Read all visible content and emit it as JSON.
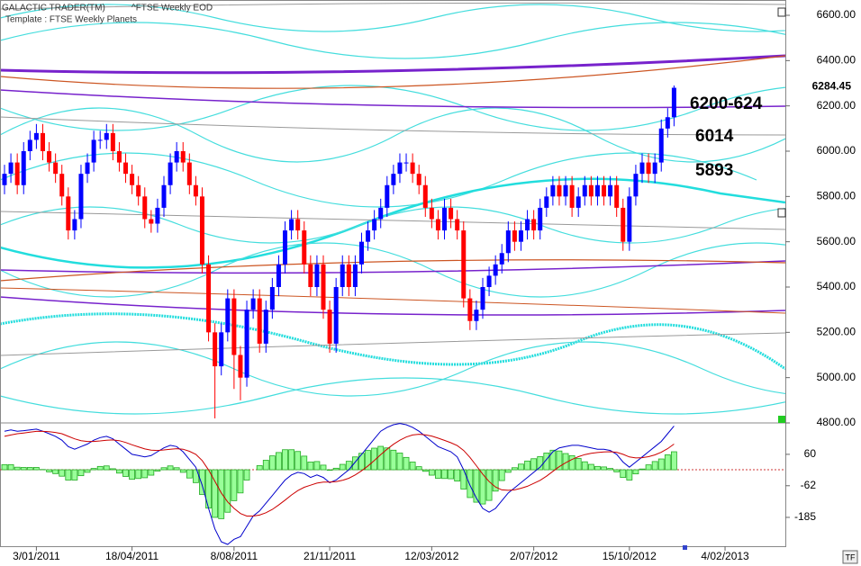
{
  "chart_data": [
    {
      "type": "candlestick",
      "title": "GALACTIC TRADER(TM)",
      "subtitle": "^FTSE Weekly EOD",
      "template": "Template : FTSE Weekly Planets",
      "up_color": "#0000ff",
      "down_color": "#ff0000",
      "open": [
        5850,
        5900,
        5950,
        5850,
        6000,
        6050,
        6080,
        6000,
        5950,
        5900,
        5800,
        5650,
        5700,
        5900,
        5950,
        6050,
        6050,
        6080,
        6000,
        5950,
        5900,
        5850,
        5800,
        5700,
        5680,
        5750,
        5850,
        5950,
        6000,
        5950,
        5850,
        5800,
        5500,
        5200,
        5050,
        5200,
        5350,
        5100,
        5000,
        5300,
        5350,
        5150,
        5300,
        5400,
        5500,
        5650,
        5700,
        5650,
        5500,
        5400,
        5500,
        5300,
        5150,
        5400,
        5500,
        5400,
        5500,
        5600,
        5650,
        5700,
        5750,
        5850,
        5900,
        5950,
        5950,
        5900,
        5850,
        5750,
        5700,
        5650,
        5750,
        5700,
        5650,
        5350,
        5250,
        5300,
        5400,
        5450,
        5500,
        5550,
        5650,
        5600,
        5650,
        5700,
        5650,
        5750,
        5800,
        5850,
        5800,
        5850,
        5750,
        5800,
        5850,
        5800,
        5850,
        5800,
        5850,
        5750,
        5600,
        5800,
        5900,
        5950,
        5900,
        5950,
        6100,
        6150
      ],
      "high": [
        5940,
        5990,
        5990,
        6040,
        6090,
        6120,
        6120,
        6040,
        5990,
        5940,
        5840,
        5740,
        5940,
        5990,
        6090,
        6090,
        6120,
        6120,
        6040,
        5990,
        5940,
        5890,
        5840,
        5740,
        5790,
        5890,
        5990,
        6040,
        6040,
        5990,
        5890,
        5840,
        5540,
        5240,
        5240,
        5390,
        5390,
        5140,
        5340,
        5390,
        5390,
        5340,
        5440,
        5540,
        5690,
        5740,
        5740,
        5690,
        5540,
        5540,
        5540,
        5340,
        5440,
        5540,
        5540,
        5540,
        5640,
        5690,
        5740,
        5790,
        5890,
        5940,
        5990,
        5990,
        5990,
        5940,
        5890,
        5790,
        5740,
        5790,
        5790,
        5740,
        5690,
        5390,
        5340,
        5440,
        5490,
        5540,
        5590,
        5690,
        5690,
        5690,
        5740,
        5740,
        5790,
        5840,
        5890,
        5890,
        5890,
        5890,
        5840,
        5890,
        5890,
        5890,
        5890,
        5890,
        5890,
        5790,
        5840,
        5940,
        5990,
        5990,
        5990,
        6140,
        6190,
        6290
      ],
      "low": [
        5810,
        5860,
        5810,
        5810,
        5960,
        6010,
        5960,
        5910,
        5860,
        5760,
        5610,
        5610,
        5660,
        5860,
        5910,
        6010,
        6010,
        5960,
        5910,
        5860,
        5810,
        5760,
        5660,
        5640,
        5640,
        5710,
        5810,
        5910,
        5910,
        5810,
        5760,
        5460,
        5160,
        4820,
        5010,
        5160,
        4950,
        4900,
        4960,
        5260,
        5110,
        5110,
        5260,
        5360,
        5460,
        5610,
        5610,
        5460,
        5360,
        5360,
        5260,
        5110,
        5110,
        5360,
        5360,
        5360,
        5460,
        5560,
        5610,
        5660,
        5710,
        5810,
        5860,
        5910,
        5860,
        5810,
        5710,
        5660,
        5610,
        5610,
        5660,
        5610,
        5310,
        5210,
        5210,
        5260,
        5360,
        5410,
        5460,
        5510,
        5560,
        5560,
        5610,
        5610,
        5610,
        5710,
        5760,
        5760,
        5760,
        5710,
        5710,
        5760,
        5760,
        5760,
        5760,
        5760,
        5710,
        5560,
        5560,
        5760,
        5860,
        5860,
        5860,
        5910,
        6060,
        6110
      ],
      "close": [
        5900,
        5950,
        5850,
        6000,
        6050,
        6080,
        6000,
        5950,
        5900,
        5800,
        5650,
        5700,
        5900,
        5950,
        6050,
        6050,
        6080,
        6000,
        5950,
        5900,
        5850,
        5800,
        5700,
        5680,
        5750,
        5850,
        5950,
        6000,
        5950,
        5850,
        5800,
        5500,
        5200,
        5050,
        5200,
        5350,
        5100,
        5000,
        5300,
        5350,
        5150,
        5300,
        5400,
        5500,
        5650,
        5700,
        5650,
        5500,
        5400,
        5500,
        5300,
        5150,
        5400,
        5500,
        5400,
        5500,
        5600,
        5650,
        5700,
        5750,
        5850,
        5900,
        5950,
        5950,
        5900,
        5850,
        5750,
        5700,
        5650,
        5750,
        5700,
        5650,
        5350,
        5250,
        5300,
        5400,
        5450,
        5500,
        5550,
        5650,
        5600,
        5650,
        5700,
        5650,
        5750,
        5800,
        5850,
        5800,
        5850,
        5750,
        5800,
        5850,
        5800,
        5850,
        5800,
        5850,
        5750,
        5600,
        5800,
        5900,
        5950,
        5900,
        5950,
        6100,
        6150,
        6280
      ],
      "last_price": 6284.45,
      "annotations": [
        "6200-624",
        "6014",
        "5893"
      ],
      "ylim": [
        4800,
        6600
      ],
      "yticks": [
        {
          "value": 6600,
          "label": "6600.00"
        },
        {
          "value": 6400,
          "label": "6400.00"
        },
        {
          "value": 6200,
          "label": "6200.00"
        },
        {
          "value": 6000,
          "label": "6000.00"
        },
        {
          "value": 5800,
          "label": "5800.00"
        },
        {
          "value": 5600,
          "label": "5600.00"
        },
        {
          "value": 5400,
          "label": "5400.00"
        },
        {
          "value": 5200,
          "label": "5200.00"
        },
        {
          "value": 5000,
          "label": "5000.00"
        },
        {
          "value": 4800,
          "label": "4800.00"
        }
      ],
      "grid": true
    },
    {
      "type": "macd",
      "series": [
        {
          "color": "#0000cc",
          "values": [
            150,
            155,
            150,
            152,
            155,
            158,
            150,
            140,
            130,
            115,
            90,
            80,
            90,
            100,
            115,
            125,
            130,
            120,
            100,
            80,
            60,
            55,
            50,
            55,
            70,
            85,
            95,
            90,
            70,
            40,
            10,
            -60,
            -150,
            -230,
            -280,
            -290,
            -270,
            -260,
            -220,
            -180,
            -160,
            -130,
            -100,
            -70,
            -40,
            -20,
            -10,
            -15,
            -30,
            -20,
            -30,
            -50,
            -40,
            -20,
            0,
            30,
            60,
            90,
            120,
            150,
            165,
            175,
            180,
            175,
            165,
            150,
            130,
            110,
            90,
            80,
            70,
            50,
            0,
            -60,
            -110,
            -150,
            -165,
            -150,
            -120,
            -90,
            -70,
            -50,
            -30,
            -10,
            10,
            40,
            70,
            85,
            90,
            95,
            95,
            90,
            85,
            80,
            80,
            75,
            60,
            30,
            10,
            30,
            50,
            70,
            90,
            110,
            140,
            170
          ]
        },
        {
          "color": "#cc0000",
          "values": [
            130,
            135,
            140,
            143,
            146,
            149,
            149,
            148,
            145,
            140,
            130,
            120,
            113,
            110,
            110,
            112,
            115,
            116,
            113,
            106,
            97,
            89,
            81,
            76,
            75,
            77,
            80,
            82,
            80,
            72,
            60,
            36,
            -1,
            -45,
            -90,
            -125,
            -150,
            -170,
            -180,
            -180,
            -176,
            -167,
            -154,
            -137,
            -118,
            -98,
            -81,
            -68,
            -60,
            -52,
            -48,
            -48,
            -46,
            -41,
            -33,
            -20,
            -4,
            15,
            36,
            59,
            80,
            99,
            115,
            127,
            135,
            138,
            136,
            131,
            123,
            114,
            105,
            94,
            75,
            48,
            16,
            -17,
            -46,
            -67,
            -78,
            -80,
            -78,
            -72,
            -64,
            -53,
            -41,
            -25,
            -6,
            12,
            27,
            40,
            51,
            59,
            64,
            67,
            69,
            70,
            68,
            60,
            50,
            46,
            47,
            51,
            58,
            68,
            82,
            100
          ]
        }
      ],
      "histogram": {
        "color": "#99ff99",
        "values": [
          20,
          20,
          10,
          9,
          9,
          9,
          1,
          -8,
          -15,
          -25,
          -40,
          -40,
          -23,
          -10,
          5,
          13,
          15,
          4,
          -13,
          -26,
          -37,
          -34,
          -31,
          -21,
          -5,
          8,
          15,
          8,
          -10,
          -32,
          -50,
          -96,
          -149,
          -185,
          -190,
          -165,
          -120,
          -90,
          -40,
          0,
          16,
          37,
          54,
          67,
          78,
          78,
          71,
          53,
          30,
          32,
          18,
          -2,
          6,
          21,
          33,
          50,
          64,
          75,
          84,
          91,
          85,
          76,
          65,
          48,
          30,
          12,
          -6,
          -21,
          -33,
          -34,
          -35,
          -44,
          -75,
          -108,
          -126,
          -133,
          -119,
          -83,
          -42,
          -10,
          8,
          22,
          34,
          43,
          51,
          65,
          76,
          73,
          63,
          55,
          44,
          31,
          21,
          13,
          11,
          5,
          -8,
          -30,
          -40,
          -16,
          3,
          19,
          32,
          42,
          58,
          70
        ]
      },
      "ylim": [
        -297,
        182
      ],
      "yticks": [
        60,
        -62,
        -185
      ],
      "xticks": [
        {
          "value": 5,
          "label": "3/01/2011"
        },
        {
          "value": 20,
          "label": "18/04/2011"
        },
        {
          "value": 36,
          "label": "8/08/2011"
        },
        {
          "value": 51,
          "label": "21/11/2011"
        },
        {
          "value": 67,
          "label": "12/03/2012"
        },
        {
          "value": 83,
          "label": "2/07/2012"
        },
        {
          "value": 98,
          "label": "15/10/2012"
        },
        {
          "value": 113,
          "label": "4/02/2013"
        }
      ]
    }
  ]
}
